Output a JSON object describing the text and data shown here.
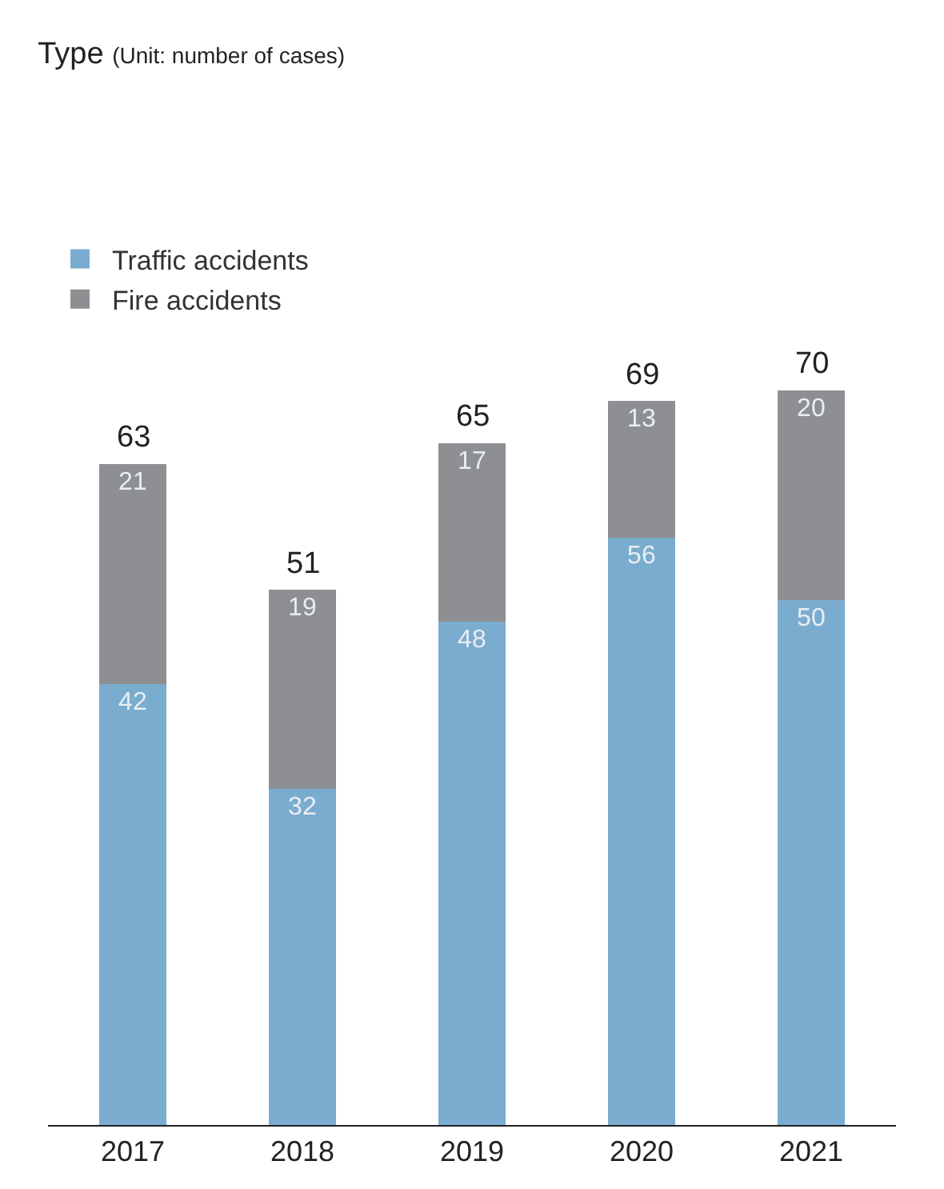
{
  "chart_data": {
    "type": "bar",
    "title": "Type",
    "subtitle": "(Unit: number of cases)",
    "categories": [
      "2017",
      "2018",
      "2019",
      "2020",
      "2021"
    ],
    "stacked": true,
    "data_labels": true,
    "legend": "top left",
    "grid": false,
    "tick_labels": "x",
    "series": [
      {
        "name": "Traffic accidents",
        "color": "#7aaccf",
        "values": [
          42,
          32,
          48,
          56,
          50
        ]
      },
      {
        "name": "Fire accidents",
        "color": "#8e8f93",
        "values": [
          21,
          19,
          17,
          13,
          20
        ]
      }
    ],
    "totals": [
      "63",
      "51",
      "65",
      "69",
      "70"
    ]
  }
}
